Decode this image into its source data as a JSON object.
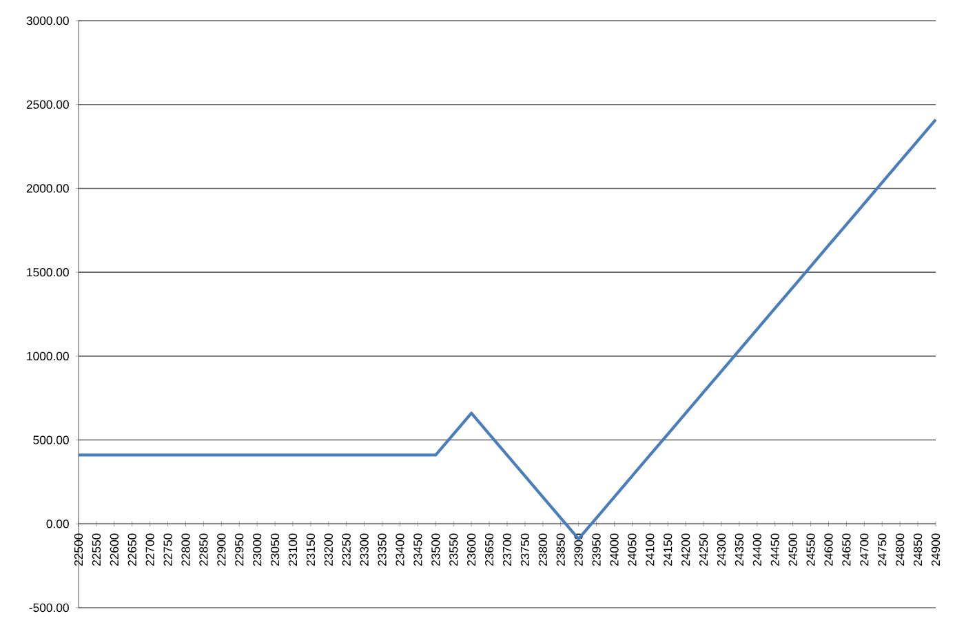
{
  "chart_data": {
    "type": "line",
    "categories": [
      "22500",
      "22550",
      "22600",
      "22650",
      "22700",
      "22750",
      "22800",
      "22850",
      "22900",
      "22950",
      "23000",
      "23050",
      "23100",
      "23150",
      "23200",
      "23250",
      "23300",
      "23350",
      "23400",
      "23450",
      "23500",
      "23550",
      "23600",
      "23650",
      "23700",
      "23750",
      "23800",
      "23850",
      "23900",
      "23950",
      "24000",
      "24050",
      "24100",
      "24150",
      "24200",
      "24250",
      "24300",
      "24350",
      "24400",
      "24450",
      "24500",
      "24550",
      "24600",
      "24650",
      "24700",
      "24750",
      "24800",
      "24850",
      "24900"
    ],
    "series": [
      {
        "color": "#4a7ebb",
        "values": [
          410,
          410,
          410,
          410,
          410,
          410,
          410,
          410,
          410,
          410,
          410,
          410,
          410,
          410,
          410,
          410,
          410,
          410,
          410,
          410,
          410,
          535,
          660,
          535,
          410,
          285,
          160,
          35,
          -90,
          35,
          160,
          285,
          410,
          535,
          660,
          785,
          910,
          1035,
          1160,
          1285,
          1410,
          1535,
          1660,
          1785,
          1910,
          2035,
          2160,
          2285,
          2410
        ]
      }
    ],
    "ylim": [
      -500,
      3000
    ],
    "yticks": [
      {
        "value": -500,
        "label": "-500.00"
      },
      {
        "value": 0,
        "label": "0.00"
      },
      {
        "value": 500,
        "label": "500.00"
      },
      {
        "value": 1000,
        "label": "1000.00"
      },
      {
        "value": 1500,
        "label": "1500.00"
      },
      {
        "value": 2000,
        "label": "2000.00"
      },
      {
        "value": 2500,
        "label": "2500.00"
      },
      {
        "value": 3000,
        "label": "3000.00"
      }
    ],
    "grid": "y",
    "marker": "none",
    "line_style": "solid"
  }
}
